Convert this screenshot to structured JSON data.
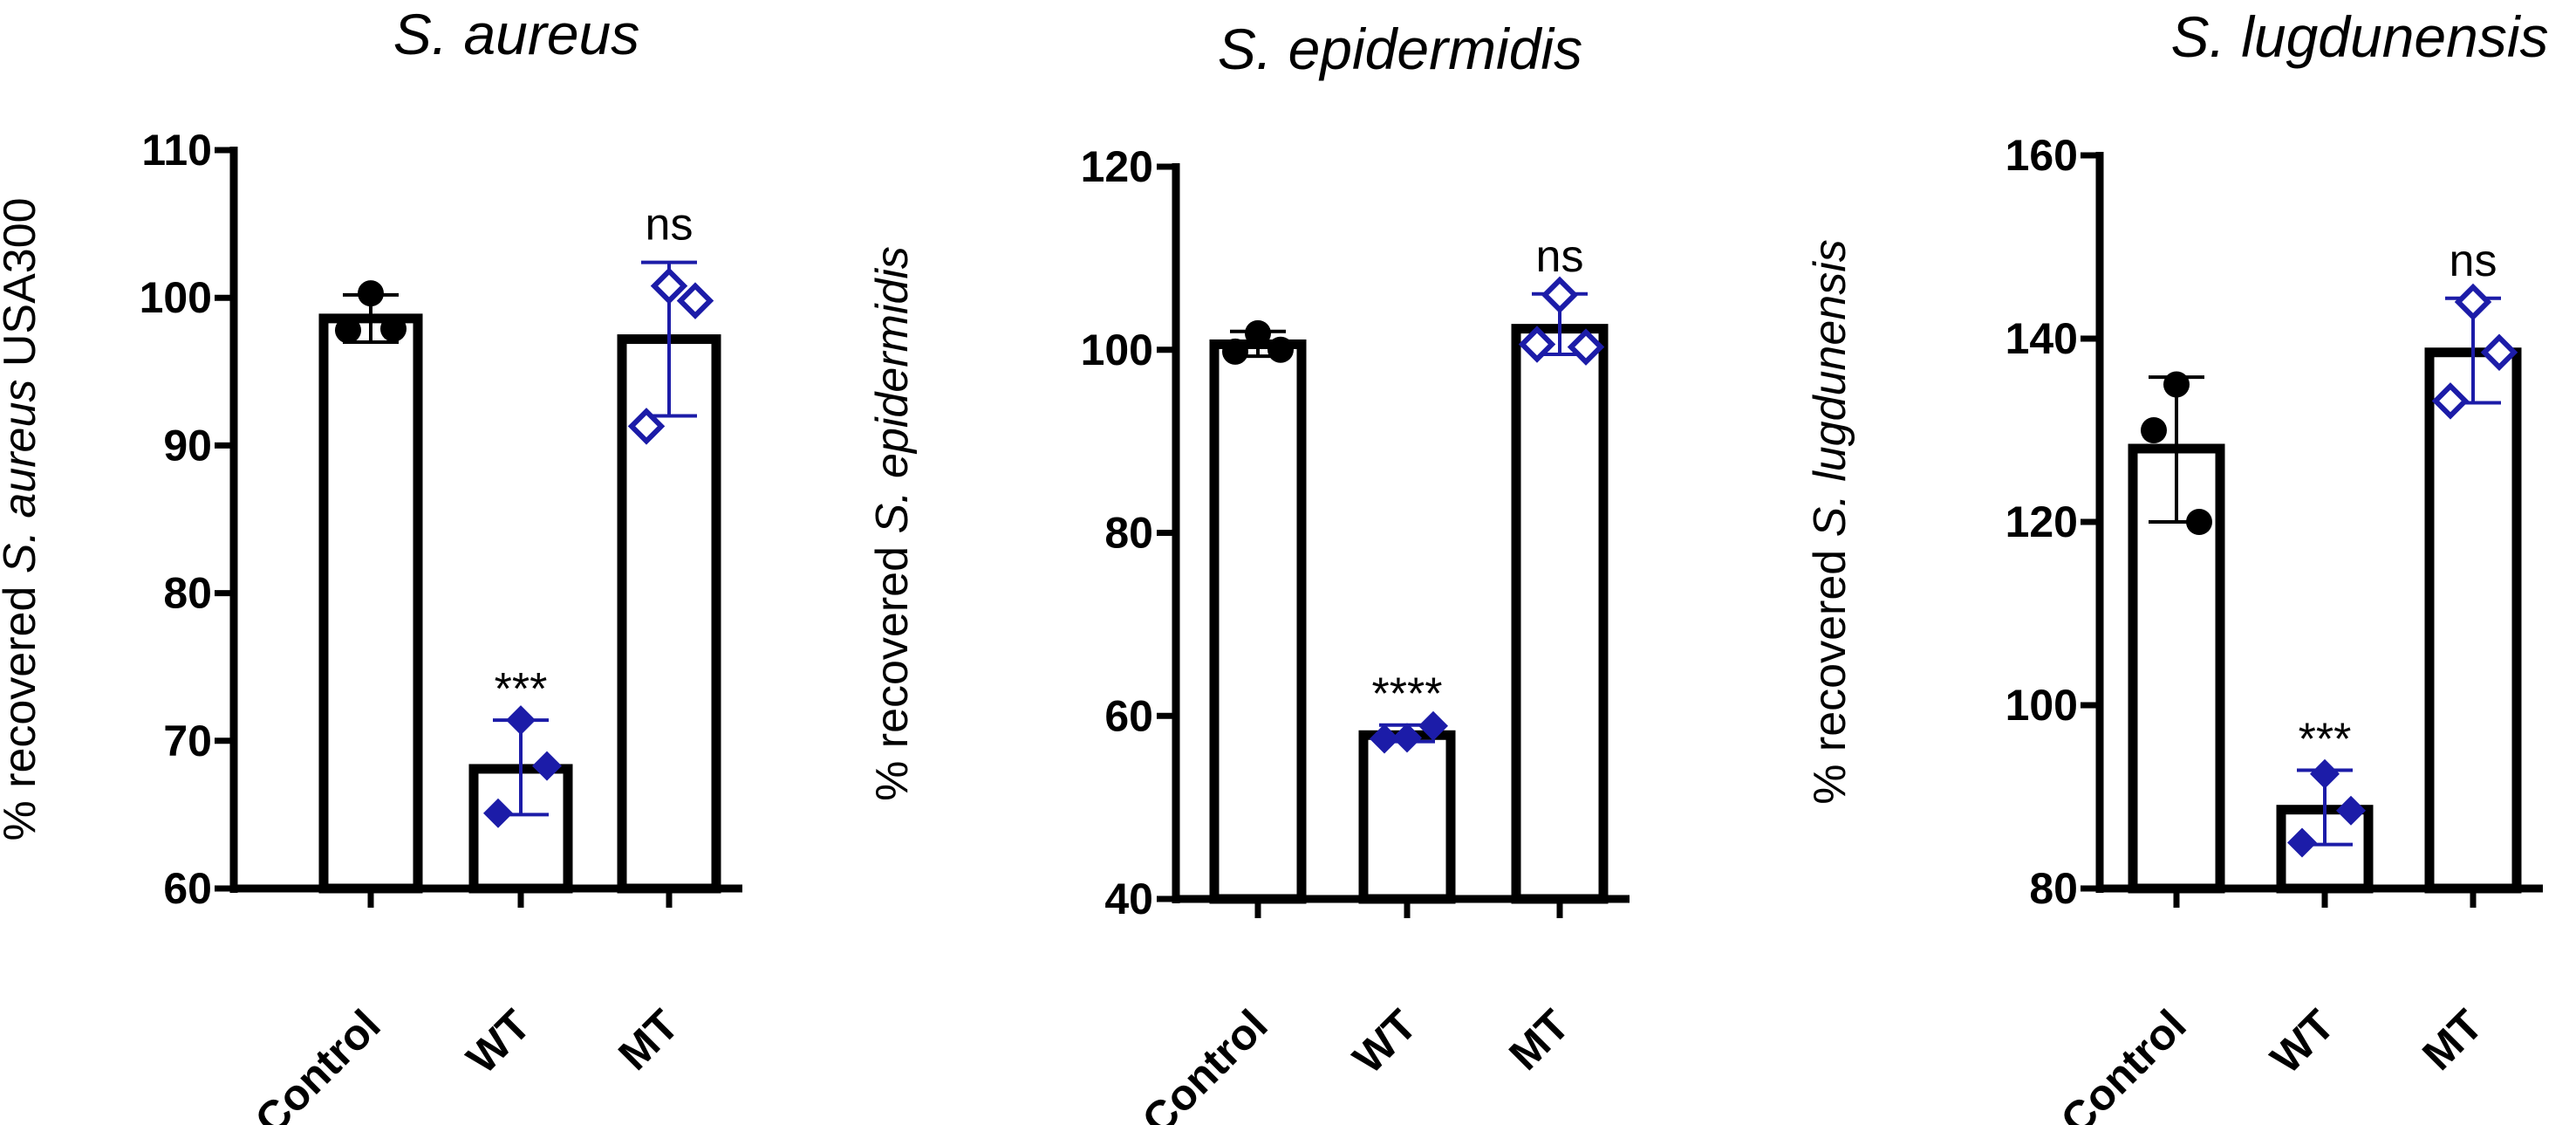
{
  "colors": {
    "axis": "#000000",
    "bar_fill": "#ffffff",
    "control_marker": "#000000",
    "wt_marker": "#1c1ca8",
    "mt_marker": "#1c1ca8"
  },
  "chart_data": [
    {
      "type": "bar",
      "title": "S. aureus",
      "ylabel_prefix": "% recovered ",
      "ylabel_italic": "S. aureus",
      "ylabel_suffix": " USA300",
      "xlabel": "",
      "categories": [
        "Control",
        "WT",
        "MT"
      ],
      "values": [
        98.6,
        68.1,
        97.2
      ],
      "error_low": [
        97.0,
        65.0,
        92.0
      ],
      "error_high": [
        100.2,
        71.4,
        102.4
      ],
      "points": [
        [
          100.3,
          97.8,
          97.9
        ],
        [
          71.4,
          68.3,
          65.1
        ],
        [
          100.8,
          99.8,
          91.3
        ]
      ],
      "markers": [
        "circle",
        "diamond",
        "open-diamond"
      ],
      "significance": [
        "",
        "***",
        "ns"
      ],
      "ylim": [
        60,
        110
      ],
      "yticks": [
        "60",
        "70",
        "80",
        "90",
        "100",
        "110"
      ],
      "grid": false,
      "legend": "none"
    },
    {
      "type": "bar",
      "title": "S. epidermidis",
      "ylabel_prefix": "% recovered ",
      "ylabel_italic": "S. epidermidis",
      "ylabel_suffix": "",
      "xlabel": "",
      "categories": [
        "Control",
        "WT",
        "MT"
      ],
      "values": [
        100.6,
        57.9,
        102.3
      ],
      "error_low": [
        99.3,
        57.2,
        99.5
      ],
      "error_high": [
        102.0,
        59.0,
        106.1
      ],
      "points": [
        [
          101.8,
          99.8,
          100.0
        ],
        [
          57.6,
          58.9,
          57.5
        ],
        [
          106.0,
          100.3,
          100.6
        ]
      ],
      "markers": [
        "circle",
        "diamond",
        "open-diamond"
      ],
      "significance": [
        "",
        "****",
        "ns"
      ],
      "ylim": [
        40,
        120
      ],
      "yticks": [
        "40",
        "60",
        "80",
        "100",
        "120"
      ],
      "grid": false,
      "legend": "none"
    },
    {
      "type": "bar",
      "title": "S. lugdunensis",
      "ylabel_prefix": "% recovered ",
      "ylabel_italic": "S. lugdunensis",
      "ylabel_suffix": "",
      "xlabel": "",
      "categories": [
        "Control",
        "WT",
        "MT"
      ],
      "values": [
        128.0,
        88.6,
        138.5
      ],
      "error_low": [
        120.0,
        84.8,
        133.0
      ],
      "error_high": [
        135.8,
        92.9,
        144.4
      ],
      "points": [
        [
          135.0,
          130.0,
          120.0
        ],
        [
          92.5,
          88.5,
          85.0
        ],
        [
          144.0,
          138.5,
          133.2
        ]
      ],
      "markers": [
        "circle",
        "diamond",
        "open-diamond"
      ],
      "significance": [
        "",
        "***",
        "ns"
      ],
      "ylim": [
        80,
        160
      ],
      "yticks": [
        "80",
        "100",
        "120",
        "140",
        "160"
      ],
      "grid": false,
      "legend": "none"
    }
  ]
}
